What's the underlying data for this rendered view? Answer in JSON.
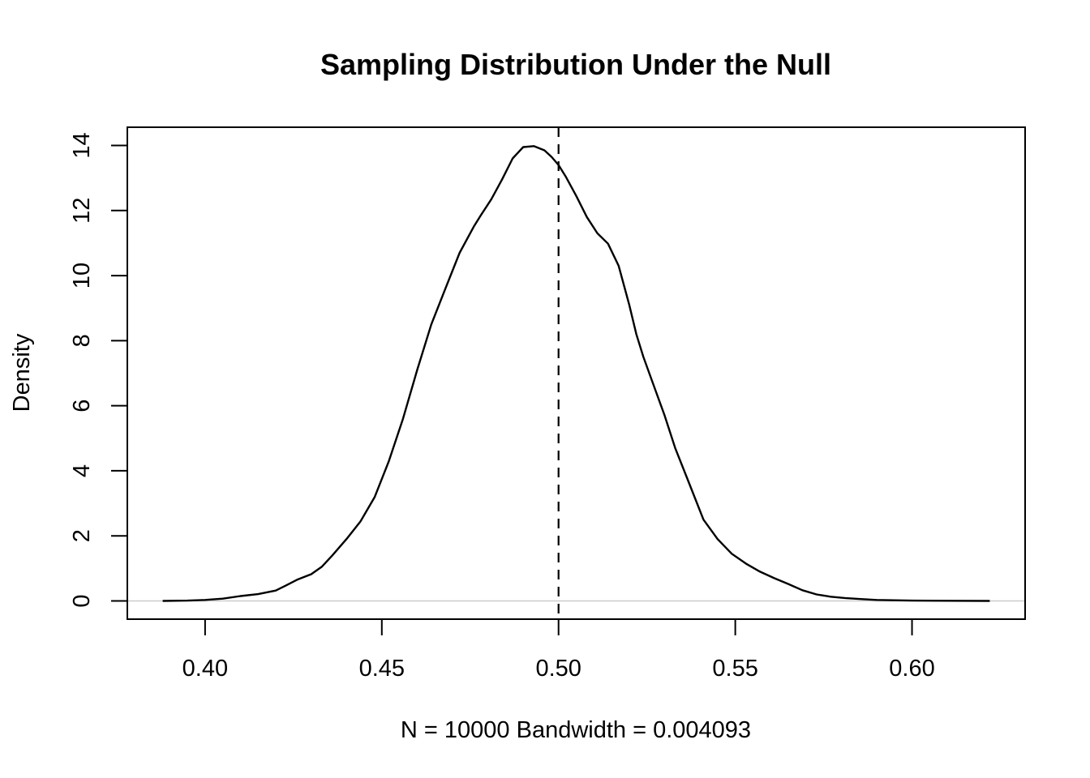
{
  "chart_data": {
    "type": "line",
    "title": "Sampling Distribution Under the Null",
    "xlabel": "N = 10000   Bandwidth = 0.004093",
    "ylabel": "Density",
    "xlim": [
      0.378,
      0.632
    ],
    "ylim": [
      -0.56,
      14.56
    ],
    "x_ticks": [
      0.4,
      0.45,
      0.5,
      0.55,
      0.6
    ],
    "x_tick_labels": [
      "0.40",
      "0.45",
      "0.50",
      "0.55",
      "0.60"
    ],
    "y_ticks": [
      0,
      2,
      4,
      6,
      8,
      10,
      12,
      14
    ],
    "y_tick_labels": [
      "0",
      "2",
      "4",
      "6",
      "8",
      "10",
      "12",
      "14"
    ],
    "grid": false,
    "reference_lines": {
      "vertical_dashed_x": 0.5,
      "horizontal_zero_y": 0
    },
    "series": [
      {
        "color": "#000000",
        "x": [
          0.388,
          0.395,
          0.4,
          0.405,
          0.41,
          0.415,
          0.42,
          0.423,
          0.426,
          0.43,
          0.433,
          0.436,
          0.44,
          0.444,
          0.448,
          0.452,
          0.456,
          0.46,
          0.464,
          0.468,
          0.472,
          0.476,
          0.478,
          0.481,
          0.484,
          0.487,
          0.49,
          0.493,
          0.496,
          0.498,
          0.5,
          0.502,
          0.505,
          0.508,
          0.511,
          0.514,
          0.517,
          0.52,
          0.522,
          0.524,
          0.527,
          0.53,
          0.533,
          0.537,
          0.541,
          0.545,
          0.549,
          0.553,
          0.557,
          0.561,
          0.565,
          0.569,
          0.573,
          0.577,
          0.581,
          0.585,
          0.59,
          0.595,
          0.6,
          0.61,
          0.622
        ],
        "y": [
          0.0,
          0.01,
          0.03,
          0.07,
          0.15,
          0.21,
          0.32,
          0.48,
          0.65,
          0.82,
          1.05,
          1.4,
          1.9,
          2.45,
          3.2,
          4.3,
          5.6,
          7.1,
          8.5,
          9.6,
          10.7,
          11.5,
          11.85,
          12.35,
          12.95,
          13.6,
          13.95,
          13.98,
          13.85,
          13.65,
          13.4,
          13.05,
          12.45,
          11.8,
          11.3,
          10.98,
          10.3,
          9.1,
          8.2,
          7.5,
          6.6,
          5.7,
          4.7,
          3.6,
          2.5,
          1.9,
          1.45,
          1.15,
          0.9,
          0.7,
          0.52,
          0.33,
          0.2,
          0.13,
          0.09,
          0.06,
          0.03,
          0.02,
          0.01,
          0.005,
          0.0
        ]
      }
    ]
  }
}
